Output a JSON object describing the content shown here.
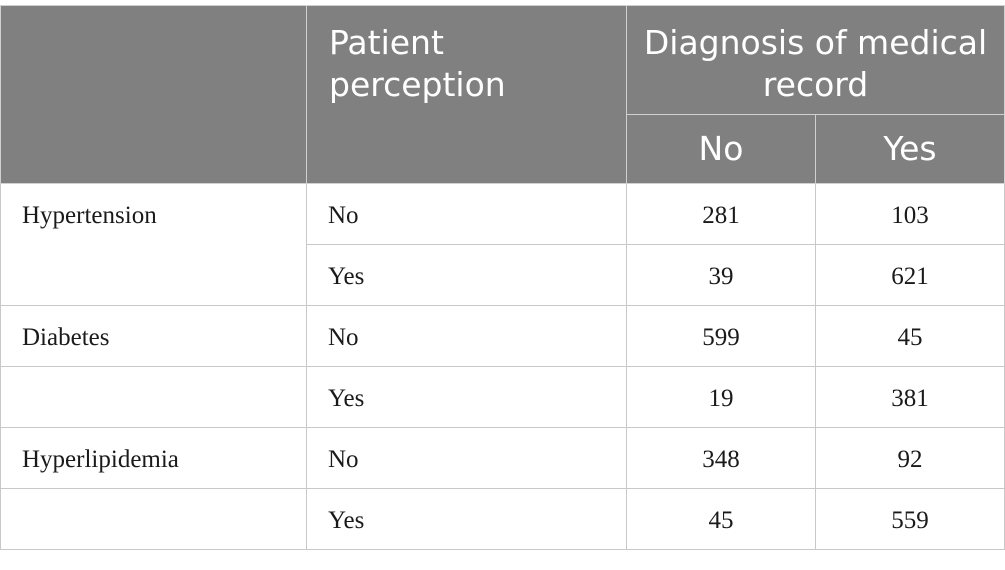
{
  "table": {
    "header": {
      "blank": "",
      "perception": "Patient perception",
      "diagnosis": "Diagnosis of medical record",
      "no": "No",
      "yes": "Yes"
    },
    "rows": [
      {
        "condition": "Hypertension",
        "perception": "No",
        "no": "281",
        "yes": "103"
      },
      {
        "condition": "",
        "perception": "Yes",
        "no": "39",
        "yes": "621"
      },
      {
        "condition": "Diabetes",
        "perception": "No",
        "no": "599",
        "yes": "45"
      },
      {
        "condition": "",
        "perception": "Yes",
        "no": "19",
        "yes": "381"
      },
      {
        "condition": "Hyperlipidemia",
        "perception": "No",
        "no": "348",
        "yes": "92"
      },
      {
        "condition": "",
        "perception": "Yes",
        "no": "45",
        "yes": "559"
      }
    ]
  }
}
